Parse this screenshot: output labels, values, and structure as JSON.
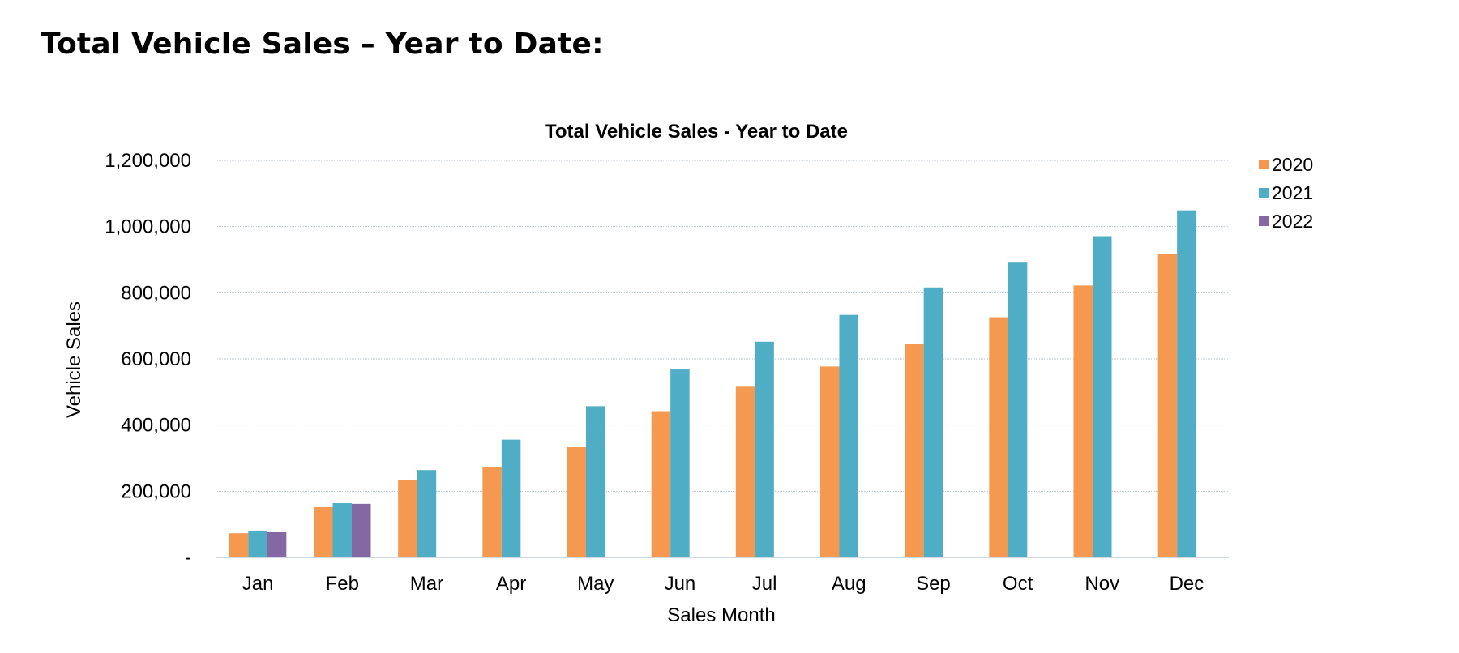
{
  "page": {
    "heading": "Total Vehicle Sales – Year to Date:"
  },
  "chart_data": {
    "type": "bar",
    "title": "Total Vehicle Sales - Year to Date",
    "xlabel": "Sales Month",
    "ylabel": "Vehicle Sales",
    "ylim": [
      0,
      1200000
    ],
    "yticks": [
      0,
      200000,
      400000,
      600000,
      800000,
      1000000,
      1200000
    ],
    "ytick_labels": [
      "-",
      "200,000",
      "400,000",
      "600,000",
      "800,000",
      "1,000,000",
      "1,200,000"
    ],
    "grid": true,
    "legend_position": "right",
    "categories": [
      "Jan",
      "Feb",
      "Mar",
      "Apr",
      "May",
      "Jun",
      "Jul",
      "Aug",
      "Sep",
      "Oct",
      "Nov",
      "Dec"
    ],
    "series": [
      {
        "name": "2020",
        "color": "#f4994f",
        "values": [
          73000,
          152000,
          233000,
          273000,
          333000,
          442000,
          516000,
          577000,
          645000,
          726000,
          822000,
          918000
        ]
      },
      {
        "name": "2021",
        "color": "#4fadc6",
        "values": [
          79000,
          164000,
          264000,
          356000,
          457000,
          568000,
          652000,
          733000,
          816000,
          891000,
          971000,
          1049000
        ]
      },
      {
        "name": "2022",
        "color": "#8468a4",
        "values": [
          76000,
          162000,
          null,
          null,
          null,
          null,
          null,
          null,
          null,
          null,
          null,
          null
        ]
      }
    ]
  }
}
